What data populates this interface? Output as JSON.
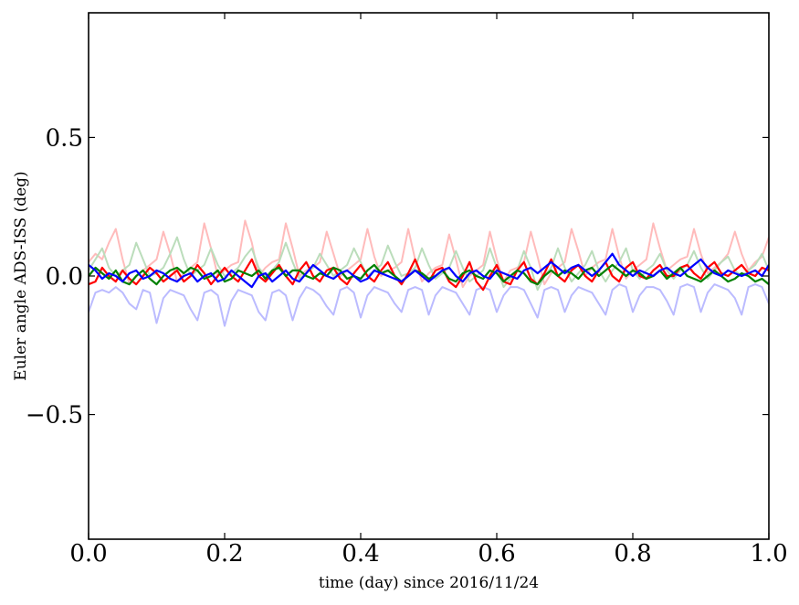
{
  "chart_data": {
    "type": "line",
    "title": "",
    "xlabel": "time (day) since 2016/11/24",
    "ylabel": "Euler angle ADS-ISS (deg)",
    "xlim": [
      0.0,
      1.0
    ],
    "ylim": [
      -0.95,
      0.95
    ],
    "grid": false,
    "legend": "none",
    "x_ticks": [
      0.0,
      0.2,
      0.4,
      0.6,
      0.8,
      1.0
    ],
    "x_tick_labels": [
      "0.0",
      "0.2",
      "0.4",
      "0.6",
      "0.8",
      "1.0"
    ],
    "y_ticks": [
      -0.5,
      0.0,
      0.5
    ],
    "y_tick_labels": [
      "−0.5",
      "0.0",
      "0.5"
    ],
    "x": [
      0.0,
      0.01,
      0.02,
      0.03,
      0.04,
      0.05,
      0.06,
      0.07,
      0.08,
      0.09,
      0.1,
      0.11,
      0.12,
      0.13,
      0.14,
      0.15,
      0.16,
      0.17,
      0.18,
      0.19,
      0.2,
      0.21,
      0.22,
      0.23,
      0.24,
      0.25,
      0.26,
      0.27,
      0.28,
      0.29,
      0.3,
      0.31,
      0.32,
      0.33,
      0.34,
      0.35,
      0.36,
      0.37,
      0.38,
      0.39,
      0.4,
      0.41,
      0.42,
      0.43,
      0.44,
      0.45,
      0.46,
      0.47,
      0.48,
      0.49,
      0.5,
      0.51,
      0.52,
      0.53,
      0.54,
      0.55,
      0.56,
      0.57,
      0.58,
      0.59,
      0.6,
      0.61,
      0.62,
      0.63,
      0.64,
      0.65,
      0.66,
      0.67,
      0.68,
      0.69,
      0.7,
      0.71,
      0.72,
      0.73,
      0.74,
      0.75,
      0.76,
      0.77,
      0.78,
      0.79,
      0.8,
      0.81,
      0.82,
      0.83,
      0.84,
      0.85,
      0.86,
      0.87,
      0.88,
      0.89,
      0.9,
      0.91,
      0.92,
      0.93,
      0.94,
      0.95,
      0.96,
      0.97,
      0.98,
      0.99,
      1.0
    ],
    "series": [
      {
        "color": "#ffbbbb",
        "values": [
          0.05,
          0.08,
          0.06,
          0.12,
          0.17,
          0.06,
          -0.03,
          0.0,
          0.02,
          0.04,
          0.06,
          0.16,
          0.08,
          -0.02,
          0.01,
          0.03,
          0.05,
          0.19,
          0.1,
          0.0,
          0.02,
          0.04,
          0.05,
          0.2,
          0.12,
          0.0,
          0.03,
          0.05,
          0.06,
          0.19,
          0.1,
          0.0,
          0.02,
          0.03,
          0.05,
          0.16,
          0.08,
          0.0,
          0.02,
          0.04,
          0.06,
          0.17,
          0.07,
          0.0,
          0.02,
          0.03,
          0.05,
          0.17,
          0.06,
          -0.02,
          0.01,
          0.03,
          0.04,
          0.15,
          0.06,
          -0.04,
          0.0,
          0.02,
          0.04,
          0.16,
          0.06,
          -0.02,
          0.02,
          0.03,
          0.05,
          0.16,
          0.07,
          -0.03,
          0.01,
          0.03,
          0.05,
          0.17,
          0.09,
          0.0,
          0.03,
          0.05,
          0.06,
          0.17,
          0.07,
          -0.01,
          0.02,
          0.04,
          0.06,
          0.19,
          0.1,
          0.02,
          0.04,
          0.06,
          0.07,
          0.17,
          0.08,
          0.01,
          0.03,
          0.05,
          0.08,
          0.16,
          0.08,
          0.02,
          0.05,
          0.07,
          0.14
        ]
      },
      {
        "color": "#bbddbb",
        "values": [
          0.02,
          0.06,
          0.1,
          0.03,
          0.0,
          0.02,
          0.04,
          0.12,
          0.06,
          0.0,
          0.01,
          0.03,
          0.08,
          0.14,
          0.06,
          0.0,
          0.02,
          0.04,
          0.1,
          0.04,
          0.0,
          0.01,
          0.03,
          0.07,
          0.1,
          0.03,
          0.0,
          0.02,
          0.05,
          0.12,
          0.05,
          -0.01,
          0.01,
          0.03,
          0.08,
          0.04,
          0.0,
          0.02,
          0.04,
          0.1,
          0.05,
          0.0,
          0.02,
          0.04,
          0.11,
          0.05,
          0.0,
          0.01,
          0.03,
          0.1,
          0.04,
          -0.01,
          0.01,
          0.03,
          0.09,
          0.03,
          -0.02,
          0.0,
          0.02,
          0.1,
          0.03,
          -0.04,
          -0.01,
          0.02,
          0.09,
          0.03,
          -0.05,
          0.0,
          0.03,
          0.1,
          0.03,
          -0.02,
          0.01,
          0.04,
          0.09,
          0.02,
          -0.02,
          0.02,
          0.05,
          0.1,
          0.02,
          -0.01,
          0.02,
          0.04,
          0.08,
          0.02,
          -0.01,
          0.02,
          0.04,
          0.09,
          0.03,
          -0.01,
          0.02,
          0.05,
          0.07,
          0.02,
          0.0,
          0.02,
          0.04,
          0.08,
          0.02
        ]
      },
      {
        "color": "#bbbbff",
        "values": [
          -0.13,
          -0.06,
          -0.05,
          -0.06,
          -0.04,
          -0.06,
          -0.1,
          -0.12,
          -0.05,
          -0.06,
          -0.17,
          -0.08,
          -0.05,
          -0.06,
          -0.07,
          -0.12,
          -0.16,
          -0.06,
          -0.05,
          -0.07,
          -0.18,
          -0.09,
          -0.05,
          -0.06,
          -0.07,
          -0.13,
          -0.16,
          -0.06,
          -0.05,
          -0.07,
          -0.16,
          -0.08,
          -0.04,
          -0.05,
          -0.07,
          -0.11,
          -0.14,
          -0.05,
          -0.04,
          -0.06,
          -0.15,
          -0.07,
          -0.04,
          -0.05,
          -0.06,
          -0.1,
          -0.13,
          -0.05,
          -0.04,
          -0.05,
          -0.14,
          -0.07,
          -0.04,
          -0.05,
          -0.06,
          -0.1,
          -0.14,
          -0.05,
          -0.04,
          -0.05,
          -0.13,
          -0.07,
          -0.04,
          -0.04,
          -0.05,
          -0.1,
          -0.15,
          -0.05,
          -0.04,
          -0.05,
          -0.13,
          -0.07,
          -0.04,
          -0.05,
          -0.06,
          -0.1,
          -0.14,
          -0.05,
          -0.03,
          -0.04,
          -0.13,
          -0.07,
          -0.04,
          -0.04,
          -0.05,
          -0.09,
          -0.14,
          -0.04,
          -0.03,
          -0.04,
          -0.13,
          -0.06,
          -0.03,
          -0.04,
          -0.05,
          -0.08,
          -0.14,
          -0.04,
          -0.03,
          -0.04,
          -0.1
        ]
      },
      {
        "color": "#ff0000",
        "values": [
          -0.03,
          -0.02,
          0.03,
          0.0,
          -0.02,
          0.02,
          -0.01,
          -0.03,
          0.0,
          0.03,
          0.01,
          -0.02,
          0.0,
          0.02,
          -0.02,
          0.0,
          0.04,
          0.01,
          -0.03,
          0.0,
          0.03,
          0.0,
          -0.02,
          0.02,
          0.06,
          0.0,
          -0.02,
          0.01,
          0.04,
          0.0,
          -0.03,
          0.02,
          0.05,
          0.0,
          -0.02,
          0.02,
          0.03,
          -0.01,
          -0.03,
          0.01,
          0.04,
          0.0,
          -0.02,
          0.02,
          0.05,
          0.0,
          -0.03,
          0.01,
          0.06,
          0.0,
          -0.02,
          0.02,
          0.03,
          -0.02,
          -0.04,
          0.0,
          0.05,
          -0.02,
          -0.05,
          0.0,
          0.04,
          -0.02,
          -0.03,
          0.02,
          0.05,
          -0.01,
          -0.03,
          0.01,
          0.06,
          0.0,
          -0.02,
          0.02,
          0.04,
          0.0,
          -0.02,
          0.02,
          0.05,
          0.0,
          -0.02,
          0.03,
          0.05,
          0.0,
          -0.01,
          0.02,
          0.04,
          0.0,
          0.0,
          0.03,
          0.04,
          0.01,
          -0.01,
          0.03,
          0.05,
          0.01,
          0.0,
          0.02,
          0.04,
          0.01,
          0.0,
          0.03,
          0.02
        ]
      },
      {
        "color": "#008000",
        "values": [
          0.0,
          0.03,
          0.01,
          -0.01,
          0.02,
          -0.02,
          -0.03,
          0.0,
          0.02,
          -0.01,
          -0.03,
          0.0,
          0.02,
          0.03,
          0.01,
          0.03,
          0.02,
          -0.01,
          0.0,
          0.02,
          -0.02,
          -0.01,
          0.02,
          0.01,
          0.0,
          0.02,
          -0.01,
          0.02,
          0.03,
          0.0,
          0.02,
          0.02,
          0.0,
          -0.01,
          0.01,
          0.0,
          0.03,
          0.02,
          -0.01,
          0.0,
          -0.01,
          0.02,
          0.04,
          0.01,
          0.02,
          0.0,
          -0.02,
          0.0,
          0.02,
          0.01,
          -0.01,
          0.0,
          0.02,
          -0.01,
          -0.02,
          0.01,
          0.02,
          0.0,
          -0.01,
          0.02,
          0.01,
          -0.02,
          0.0,
          0.02,
          0.01,
          -0.02,
          -0.03,
          0.0,
          0.02,
          0.0,
          0.02,
          0.01,
          -0.01,
          0.02,
          0.03,
          0.0,
          0.02,
          0.04,
          0.02,
          0.0,
          0.02,
          0.01,
          -0.01,
          0.0,
          0.02,
          -0.01,
          0.01,
          0.03,
          0.0,
          -0.01,
          -0.02,
          0.0,
          0.02,
          0.0,
          -0.02,
          -0.01,
          0.01,
          0.0,
          -0.02,
          -0.01,
          -0.03
        ]
      },
      {
        "color": "#0000ff",
        "values": [
          0.04,
          0.02,
          -0.01,
          0.01,
          0.0,
          -0.02,
          0.01,
          0.02,
          -0.01,
          0.0,
          0.02,
          0.01,
          -0.01,
          -0.02,
          0.0,
          0.01,
          -0.02,
          0.0,
          0.01,
          -0.02,
          -0.01,
          0.02,
          0.0,
          -0.02,
          -0.04,
          0.0,
          0.01,
          -0.02,
          0.0,
          0.02,
          -0.01,
          -0.02,
          0.01,
          0.04,
          0.02,
          0.0,
          -0.01,
          0.01,
          0.02,
          0.0,
          -0.02,
          -0.01,
          0.02,
          0.01,
          0.0,
          -0.01,
          -0.02,
          0.0,
          0.02,
          0.0,
          -0.02,
          0.0,
          0.02,
          0.03,
          0.0,
          -0.02,
          0.01,
          0.02,
          0.0,
          -0.01,
          0.02,
          0.01,
          0.0,
          -0.01,
          0.02,
          0.03,
          0.01,
          0.03,
          0.05,
          0.03,
          0.01,
          0.03,
          0.04,
          0.02,
          0.0,
          0.02,
          0.05,
          0.08,
          0.04,
          0.02,
          0.0,
          0.02,
          0.01,
          0.0,
          0.02,
          0.03,
          0.01,
          0.0,
          0.02,
          0.04,
          0.06,
          0.03,
          0.01,
          0.0,
          0.02,
          0.01,
          0.0,
          0.01,
          0.02,
          0.0,
          0.04
        ]
      }
    ]
  }
}
